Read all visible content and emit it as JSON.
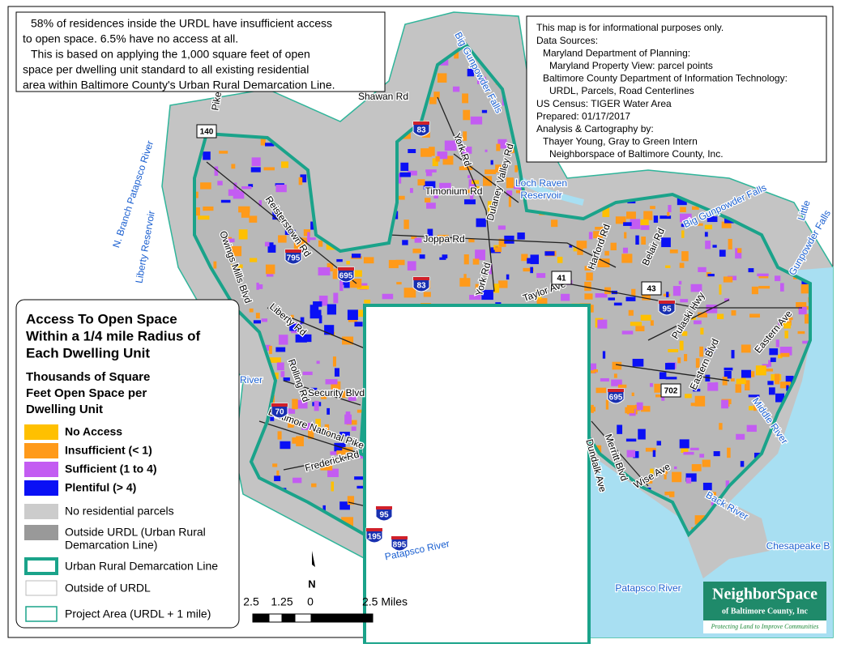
{
  "summary": {
    "lines": [
      "58% of residences inside the URDL have insufficient access",
      "to open space.  6.5% have no access at all.",
      "This is based on applying the 1,000 square feet of open",
      "space per dwelling unit  standard to all existing residential",
      "area within Baltimore County's Urban Rural Demarcation Line."
    ]
  },
  "sources": {
    "lines": [
      "This map is for informational purposes only.",
      "Data Sources:",
      "Maryland Department of Planning:",
      "Maryland Property View: parcel points",
      "Baltimore County Department of Information Technology:",
      "URDL, Parcels, Road Centerlines",
      "US Census: TIGER Water Area",
      "Prepared: 01/17/2017",
      "Analysis & Cartography by:",
      "Thayer Young, Gray to Green Intern",
      "Neighborspace of Baltimore County, Inc."
    ]
  },
  "legend": {
    "title": [
      "Access To Open Space",
      "Within a 1/4 mile Radius of",
      "Each Dwelling Unit"
    ],
    "subtitle": [
      "Thousands of Square",
      "Feet Open Space per",
      "Dwelling Unit"
    ],
    "classes": [
      {
        "label": "No Access",
        "color": "#ffc000"
      },
      {
        "label": "Insufficient (< 1)",
        "color": "#ff9a1a"
      },
      {
        "label": "Sufficient (1 to 4)",
        "color": "#c35cf2"
      },
      {
        "label": "Plentiful (> 4)",
        "color": "#0a10f5"
      }
    ],
    "other": [
      {
        "lines": [
          "No residential parcels"
        ],
        "color": "#cccccc"
      },
      {
        "lines": [
          "Outside URDL (Urban Rural",
          "Demarcation Line)"
        ],
        "color": "#999999"
      }
    ],
    "boundaries": [
      {
        "label": "Urban Rural Demarcation Line"
      },
      {
        "label": "Outside of URDL"
      },
      {
        "label": "Project Area (URDL + 1 mile)"
      }
    ]
  },
  "map_labels": [
    {
      "text": "Shawan Rd"
    },
    {
      "text": "Big Gunpowder Falls"
    },
    {
      "text": "York Rd"
    },
    {
      "text": "Dulaney Valley Rd"
    },
    {
      "text": "Timonium Rd"
    },
    {
      "text": "Loch Raven"
    },
    {
      "text": "Reservoir"
    },
    {
      "text": "N. Branch Patapsco River"
    },
    {
      "text": "Liberty Reservoir"
    },
    {
      "text": "Pike"
    },
    {
      "text": "Reisterstown Rd"
    },
    {
      "text": "Owings Mills Blvd"
    },
    {
      "text": "Joppa Rd"
    },
    {
      "text": "York Rd"
    },
    {
      "text": "Taylor Ave"
    },
    {
      "text": "Harford Rd"
    },
    {
      "text": "Belair Rd"
    },
    {
      "text": "Big Gunpowder Falls"
    },
    {
      "text": "Little"
    },
    {
      "text": "Gunpowder Falls"
    },
    {
      "text": "Pulaski Hwy"
    },
    {
      "text": "Eastern Blvd"
    },
    {
      "text": "Eastern Ave"
    },
    {
      "text": "Liberty Rd"
    },
    {
      "text": "Rolling Rd"
    },
    {
      "text": "Security Blvd"
    },
    {
      "text": "Baltimore National Pike"
    },
    {
      "text": "Frederick Rd"
    },
    {
      "text": "River"
    },
    {
      "text": "Middle River"
    },
    {
      "text": "Wise Ave"
    },
    {
      "text": "Merritt Blvd"
    },
    {
      "text": "Dundalk Ave"
    },
    {
      "text": "Back River"
    },
    {
      "text": "Chesapeake B"
    },
    {
      "text": "Patapsco River"
    },
    {
      "text": "Patapsco River"
    }
  ],
  "shields": [
    {
      "text": "140"
    },
    {
      "text": "83"
    },
    {
      "text": "795"
    },
    {
      "text": "695"
    },
    {
      "text": "83"
    },
    {
      "text": "41"
    },
    {
      "text": "43"
    },
    {
      "text": "95"
    },
    {
      "text": "702"
    },
    {
      "text": "695"
    },
    {
      "text": "70"
    },
    {
      "text": "95"
    },
    {
      "text": "195"
    },
    {
      "text": "895"
    }
  ],
  "scale": {
    "labels": [
      "2.5",
      "1.25",
      "0",
      "2.5 Miles"
    ],
    "north": "N"
  },
  "logo": {
    "name": "NeighborSpace",
    "org": "of Baltimore County, Inc",
    "tagline": "Protecting Land to Improve Communities"
  }
}
